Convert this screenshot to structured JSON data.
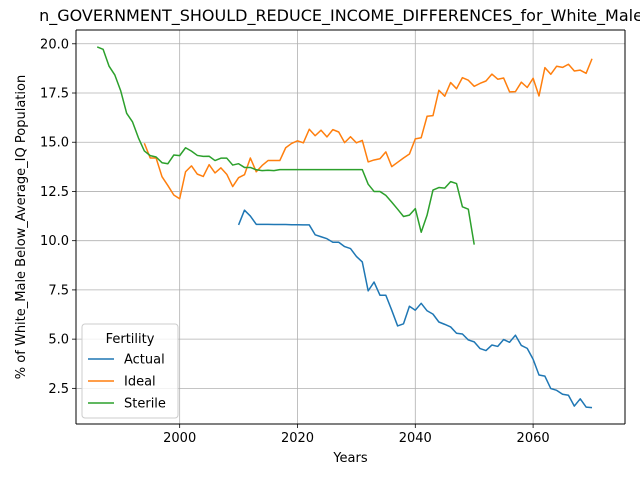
{
  "chart_data": {
    "type": "line",
    "title": "n_GOVERNMENT_SHOULD_REDUCE_INCOME_DIFFERENCES_for_White_Male_B",
    "xlabel": "Years",
    "ylabel": "% of White_Male Below_Average_IQ Population",
    "xlim": [
      1982.4,
      2075.6
    ],
    "ylim": [
      0.69,
      20.7
    ],
    "xticks": [
      2000,
      2020,
      2040,
      2060
    ],
    "xtick_labels": [
      "2000",
      "2020",
      "2040",
      "2060"
    ],
    "yticks": [
      2.5,
      5.0,
      7.5,
      10.0,
      12.5,
      15.0,
      17.5,
      20.0
    ],
    "ytick_labels": [
      "2.5",
      "5.0",
      "7.5",
      "10.0",
      "12.5",
      "15.0",
      "17.5",
      "20.0"
    ],
    "grid": true,
    "legend": {
      "title": "Fertility",
      "position": "lower-left"
    },
    "series": [
      {
        "name": "Actual",
        "color": "#1f77b4",
        "x": [
          2010,
          2011,
          2012,
          2013,
          2014,
          2015,
          2016,
          2017,
          2018,
          2019,
          2020,
          2021,
          2022,
          2023,
          2024,
          2025,
          2026,
          2027,
          2028,
          2029,
          2030,
          2031,
          2032,
          2033,
          2034,
          2035,
          2036,
          2037,
          2038,
          2039,
          2040,
          2041,
          2042,
          2043,
          2044,
          2045,
          2046,
          2047,
          2048,
          2049,
          2050,
          2051,
          2052,
          2053,
          2054,
          2055,
          2056,
          2057,
          2058,
          2059,
          2060,
          2061,
          2062,
          2063,
          2064,
          2065,
          2066,
          2067,
          2068,
          2069,
          2070
        ],
        "values": [
          10.8,
          11.55,
          11.25,
          10.83,
          10.83,
          10.83,
          10.82,
          10.82,
          10.82,
          10.81,
          10.81,
          10.8,
          10.8,
          10.3,
          10.2,
          10.1,
          9.92,
          9.92,
          9.7,
          9.6,
          9.2,
          8.92,
          7.45,
          7.9,
          7.23,
          7.23,
          6.47,
          5.67,
          5.78,
          6.67,
          6.47,
          6.82,
          6.44,
          6.27,
          5.87,
          5.75,
          5.62,
          5.3,
          5.26,
          4.96,
          4.86,
          4.52,
          4.42,
          4.7,
          4.63,
          4.98,
          4.84,
          5.2,
          4.68,
          4.53,
          3.98,
          3.18,
          3.12,
          2.49,
          2.4,
          2.2,
          2.15,
          1.6,
          1.97,
          1.55,
          1.52
        ]
      },
      {
        "name": "Ideal",
        "color": "#ff7f0e",
        "x": [
          1994,
          1995,
          1996,
          1997,
          1998,
          1999,
          2000,
          2001,
          2002,
          2003,
          2004,
          2005,
          2006,
          2007,
          2008,
          2009,
          2010,
          2011,
          2012,
          2013,
          2014,
          2015,
          2016,
          2017,
          2018,
          2019,
          2020,
          2021,
          2022,
          2023,
          2024,
          2025,
          2026,
          2027,
          2028,
          2029,
          2030,
          2031,
          2032,
          2033,
          2034,
          2035,
          2036,
          2037,
          2038,
          2039,
          2040,
          2041,
          2042,
          2043,
          2044,
          2045,
          2046,
          2047,
          2048,
          2049,
          2050,
          2051,
          2052,
          2053,
          2054,
          2055,
          2056,
          2057,
          2058,
          2059,
          2060,
          2061,
          2062,
          2063,
          2064,
          2065,
          2066,
          2067,
          2068,
          2069,
          2070
        ],
        "values": [
          14.95,
          14.2,
          14.2,
          13.25,
          12.8,
          12.32,
          12.13,
          13.5,
          13.8,
          13.38,
          13.26,
          13.86,
          13.44,
          13.7,
          13.37,
          12.75,
          13.2,
          13.35,
          14.2,
          13.5,
          13.82,
          14.07,
          14.07,
          14.07,
          14.72,
          14.94,
          15.07,
          14.97,
          15.66,
          15.33,
          15.61,
          15.27,
          15.64,
          15.52,
          14.98,
          15.28,
          14.97,
          15.09,
          14.0,
          14.1,
          14.16,
          14.51,
          13.76,
          13.98,
          14.2,
          14.4,
          15.17,
          15.23,
          16.32,
          16.35,
          17.64,
          17.34,
          18.03,
          17.72,
          18.28,
          18.15,
          17.84,
          17.99,
          18.11,
          18.46,
          18.2,
          18.26,
          17.56,
          17.57,
          18.05,
          17.78,
          18.25,
          17.35,
          18.79,
          18.45,
          18.86,
          18.8,
          18.96,
          18.62,
          18.66,
          18.5,
          19.24
        ]
      },
      {
        "name": "Sterile",
        "color": "#2ca02c",
        "x": [
          1986,
          1987,
          1988,
          1989,
          1990,
          1991,
          1992,
          1993,
          1994,
          1995,
          1996,
          1997,
          1998,
          1999,
          2000,
          2001,
          2002,
          2003,
          2004,
          2005,
          2006,
          2007,
          2008,
          2009,
          2010,
          2011,
          2012,
          2013,
          2014,
          2015,
          2016,
          2017,
          2018,
          2019,
          2020,
          2021,
          2022,
          2023,
          2024,
          2025,
          2026,
          2027,
          2028,
          2029,
          2030,
          2031,
          2032,
          2033,
          2034,
          2035,
          2036,
          2037,
          2038,
          2039,
          2040,
          2041,
          2042,
          2043,
          2044,
          2045,
          2046,
          2047,
          2048,
          2049,
          2050
        ],
        "values": [
          19.84,
          19.72,
          18.87,
          18.41,
          17.6,
          16.47,
          16.03,
          15.22,
          14.56,
          14.32,
          14.25,
          13.96,
          13.91,
          14.35,
          14.32,
          14.72,
          14.55,
          14.33,
          14.28,
          14.29,
          14.07,
          14.19,
          14.19,
          13.84,
          13.91,
          13.72,
          13.72,
          13.6,
          13.56,
          13.58,
          13.56,
          13.61,
          13.61,
          13.61,
          13.61,
          13.61,
          13.61,
          13.61,
          13.61,
          13.61,
          13.61,
          13.61,
          13.61,
          13.61,
          13.61,
          13.61,
          12.87,
          12.5,
          12.5,
          12.3,
          11.96,
          11.6,
          11.23,
          11.3,
          11.63,
          10.43,
          11.3,
          12.57,
          12.7,
          12.67,
          13.0,
          12.9,
          11.72,
          11.6,
          9.8
        ]
      }
    ]
  }
}
